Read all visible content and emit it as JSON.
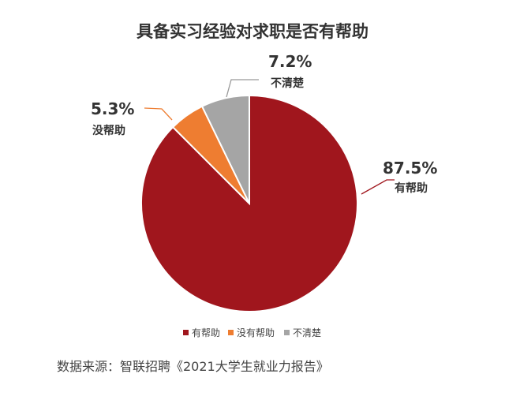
{
  "chart_data": {
    "type": "pie",
    "title": "具备实习经验对求职是否有帮助",
    "slices": [
      {
        "label": "有帮助",
        "value": 87.5,
        "display": "87.5%",
        "color": "#a0161d"
      },
      {
        "label": "没有帮助",
        "short_label": "没帮助",
        "value": 5.3,
        "display": "5.3%",
        "color": "#ee7d31"
      },
      {
        "label": "不清楚",
        "value": 7.2,
        "display": "7.2%",
        "color": "#a5a5a5"
      }
    ],
    "legend": "bottom"
  },
  "source": "数据来源：智联招聘《2021大学生就业力报告》"
}
